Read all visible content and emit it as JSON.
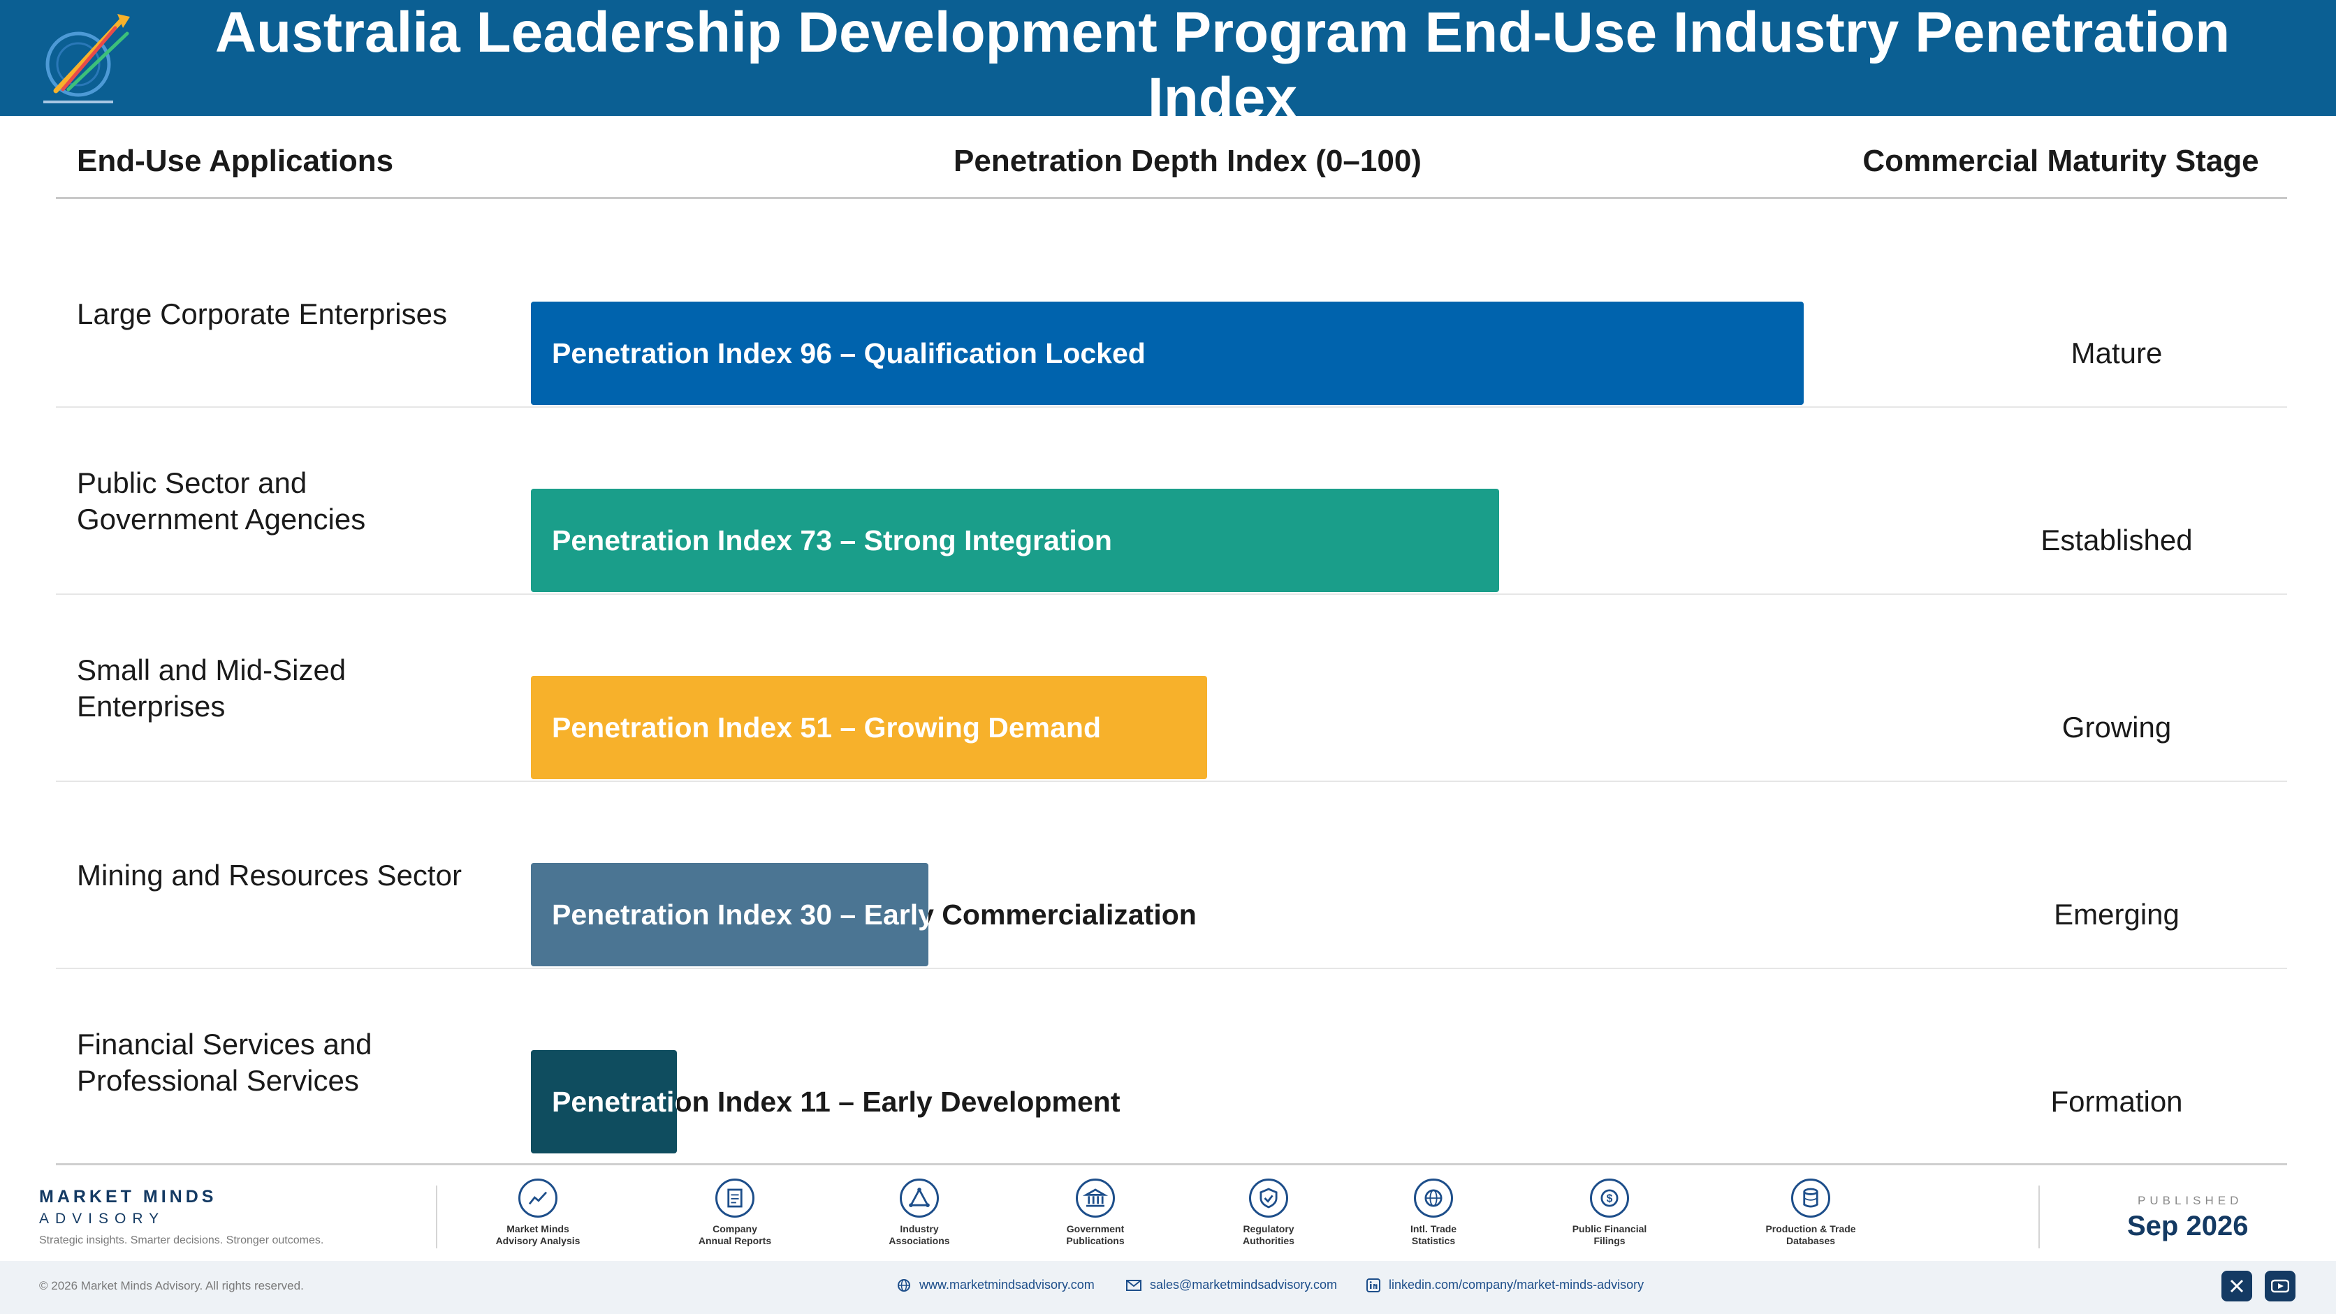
{
  "header": {
    "title": "Australia Leadership Development Program End-Use Industry Penetration Index",
    "background_color": "#0b5f93"
  },
  "columns": {
    "applications": "End-Use Applications",
    "depth": "Penetration Depth Index (0–100)",
    "stage": "Commercial Maturity Stage"
  },
  "chart_data": {
    "type": "bar",
    "orientation": "horizontal",
    "xlim": [
      0,
      100
    ],
    "categories": [
      "Large Corporate Enterprises",
      "Public Sector and Government Agencies",
      "Small and Mid-Sized Enterprises",
      "Mining and Resources Sector",
      "Financial Services and Professional Services"
    ],
    "values": [
      96,
      73,
      51,
      30,
      11
    ],
    "bar_labels": [
      "Penetration Index 96 – Qualification Locked",
      "Penetration Index 73 – Strong Integration",
      "Penetration Index 51 – Growing Demand",
      "Penetration Index 30 – Early Commercialization",
      "Penetration Index 11 – Early Development"
    ],
    "stages": [
      "Mature",
      "Established",
      "Growing",
      "Emerging",
      "Formation"
    ],
    "colors": [
      "#0063ad",
      "#1a9e8a",
      "#f7b12b",
      "#4b7593",
      "#0f4d5f"
    ]
  },
  "footer": {
    "brand_name": "MARKET MINDS",
    "brand_sub": "ADVISORY",
    "tagline": "Strategic insights. Smarter decisions. Stronger outcomes.",
    "sources": [
      {
        "line1": "Market Minds",
        "line2": "Advisory Analysis",
        "icon": "chart-line-icon"
      },
      {
        "line1": "Company",
        "line2": "Annual Reports",
        "icon": "document-icon"
      },
      {
        "line1": "Industry",
        "line2": "Associations",
        "icon": "network-icon"
      },
      {
        "line1": "Government",
        "line2": "Publications",
        "icon": "building-icon"
      },
      {
        "line1": "Regulatory",
        "line2": "Authorities",
        "icon": "shield-icon"
      },
      {
        "line1": "Intl. Trade",
        "line2": "Statistics",
        "icon": "globe-icon"
      },
      {
        "line1": "Public Financial",
        "line2": "Filings",
        "icon": "dollar-icon"
      },
      {
        "line1": "Production & Trade",
        "line2": "Databases",
        "icon": "database-icon"
      }
    ],
    "published_label": "PUBLISHED",
    "published_date": "Sep 2026",
    "copyright": "© 2026 Market Minds Advisory. All rights reserved.",
    "website": "www.marketmindsadvisory.com",
    "email": "sales@marketmindsadvisory.com",
    "linkedin": "linkedin.com/company/market-minds-advisory"
  }
}
